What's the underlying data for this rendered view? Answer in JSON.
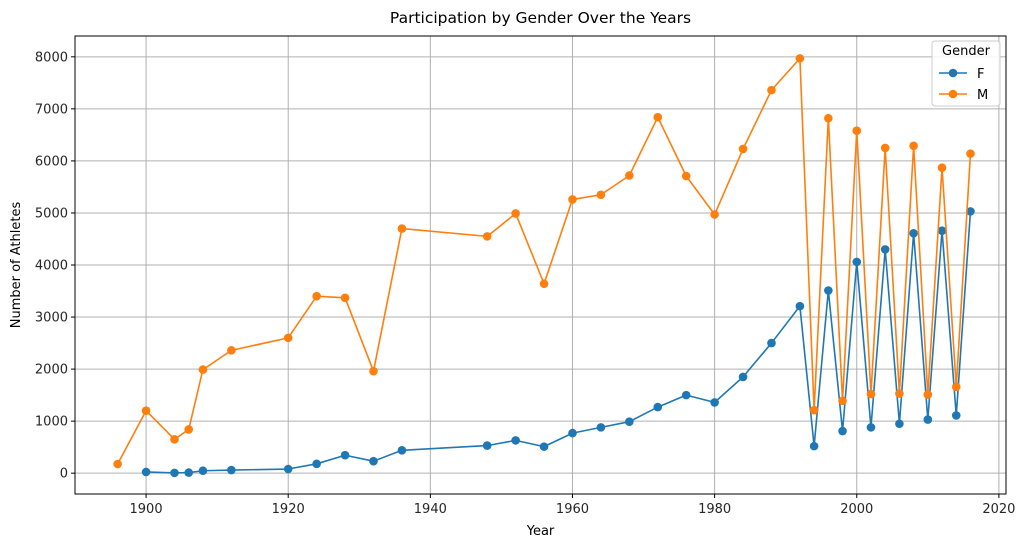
{
  "chart_data": {
    "type": "line",
    "title": "Participation by Gender Over the Years",
    "xlabel": "Year",
    "ylabel": "Number of Athletes",
    "xlim": [
      1890,
      2021
    ],
    "ylim": [
      -400,
      8400
    ],
    "xticks": [
      "1900",
      "1920",
      "1940",
      "1960",
      "1980",
      "2000",
      "2020"
    ],
    "yticks": [
      "0",
      "1000",
      "2000",
      "3000",
      "4000",
      "5000",
      "6000",
      "7000",
      "8000"
    ],
    "grid": true,
    "legend": {
      "title": "Gender",
      "placement": "top-right"
    },
    "series": [
      {
        "name": "F",
        "color": "#1f77b4",
        "x": [
          1900,
          1904,
          1906,
          1908,
          1912,
          1920,
          1924,
          1928,
          1932,
          1936,
          1948,
          1952,
          1956,
          1960,
          1964,
          1968,
          1972,
          1976,
          1980,
          1984,
          1988,
          1992,
          1994,
          1996,
          1998,
          2000,
          2002,
          2004,
          2006,
          2008,
          2010,
          2012,
          2014,
          2016
        ],
        "y": [
          23,
          6,
          11,
          47,
          60,
          80,
          180,
          345,
          230,
          440,
          530,
          630,
          510,
          770,
          880,
          990,
          1270,
          1500,
          1360,
          1850,
          2500,
          3210,
          520,
          3510,
          810,
          4060,
          880,
          4300,
          950,
          4610,
          1030,
          4660,
          1110,
          5030
        ]
      },
      {
        "name": "M",
        "color": "#ff7f0e",
        "x": [
          1896,
          1900,
          1904,
          1906,
          1908,
          1912,
          1920,
          1924,
          1928,
          1932,
          1936,
          1948,
          1952,
          1956,
          1960,
          1964,
          1968,
          1972,
          1976,
          1980,
          1984,
          1988,
          1992,
          1994,
          1996,
          1998,
          2000,
          2002,
          2004,
          2006,
          2008,
          2010,
          2012,
          2014,
          2016
        ],
        "y": [
          176,
          1200,
          650,
          840,
          1990,
          2360,
          2600,
          3400,
          3370,
          1960,
          4700,
          4550,
          4990,
          3640,
          5260,
          5350,
          5720,
          6840,
          5710,
          4970,
          6230,
          7360,
          7970,
          1210,
          6820,
          1390,
          6580,
          1520,
          6250,
          1530,
          6290,
          1510,
          5870,
          1660,
          6140
        ]
      }
    ]
  }
}
